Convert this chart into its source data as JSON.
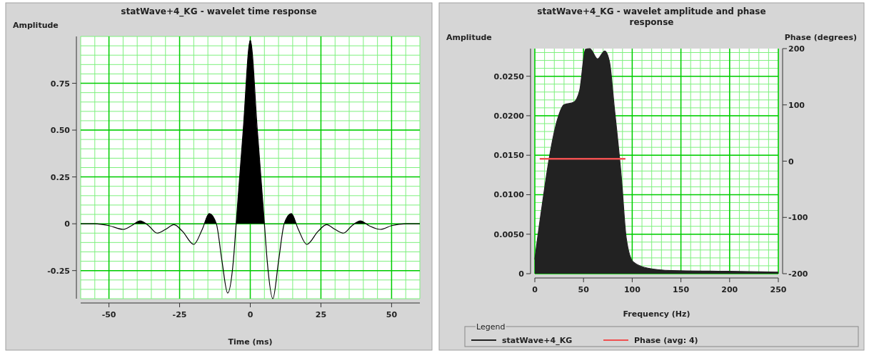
{
  "chart_data": [
    {
      "type": "area",
      "title": "statWave+4_KG - wavelet time response",
      "xlabel": "Time (ms)",
      "ylabel": "Amplitude",
      "x": [
        -60,
        -55,
        -50,
        -45,
        -42,
        -39,
        -36,
        -33,
        -30,
        -27,
        -24,
        -20,
        -17,
        -14.5,
        -12,
        -10,
        -8,
        -6,
        -5,
        -2.5,
        0,
        2.5,
        5,
        6,
        8,
        10,
        12,
        14.5,
        17,
        20,
        24,
        27,
        30,
        33,
        36,
        39,
        42,
        46,
        50,
        55,
        60
      ],
      "series": [
        {
          "color": "#000000",
          "values": [
            0,
            0,
            -0.01,
            -0.03,
            -0.01,
            0.015,
            -0.01,
            -0.05,
            -0.03,
            -0.005,
            -0.04,
            -0.11,
            -0.03,
            0.055,
            0,
            -0.2,
            -0.37,
            -0.2,
            0,
            0.5,
            0.98,
            0.5,
            0,
            -0.2,
            -0.4,
            -0.2,
            0,
            0.055,
            -0.03,
            -0.11,
            -0.04,
            -0.005,
            -0.03,
            -0.05,
            -0.01,
            0.015,
            -0.01,
            -0.03,
            -0.01,
            0,
            0
          ]
        }
      ],
      "xlim": [
        -60,
        60
      ],
      "xticks": [
        -50,
        -25,
        0,
        25,
        50
      ],
      "ylim": [
        -0.4,
        1.0
      ],
      "yticks": [
        -0.25,
        0,
        0.25,
        {
          "value": 0.5,
          "label": "0.50"
        },
        0.75
      ],
      "grid": true
    },
    {
      "type": "area",
      "title": "statWave+4_KG - wavelet amplitude and phase response",
      "xlabel": "Frequency (Hz)",
      "ylabel": "Amplitude",
      "y2label": "Phase (degrees)",
      "legend_title": "Legend",
      "legend": "bottom",
      "series": [
        {
          "name": "statWave+4_KG",
          "color": "#222222",
          "x": [
            0,
            0.6,
            7.9,
            15.3,
            22.7,
            30,
            39.8,
            46,
            52,
            56.5,
            64.4,
            71.8,
            76.7,
            81.6,
            89,
            93.9,
            101,
            116,
            140.5,
            200,
            250
          ],
          "values": [
            0.0018,
            0.0024,
            0.009,
            0.015,
            0.0193,
            0.0214,
            0.0217,
            0.0232,
            0.0284,
            0.0285,
            0.0272,
            0.0282,
            0.0268,
            0.0211,
            0.012,
            0.0045,
            0.0015,
            0.0007,
            0.0004,
            0.0003,
            0.0002
          ]
        },
        {
          "name": "Phase (avg: 4)",
          "type": "line",
          "axis": "y2",
          "color": "#f05050",
          "x": [
            5,
            93
          ],
          "values": [
            4,
            4
          ]
        }
      ],
      "xlim": [
        0,
        250
      ],
      "xticks": [
        0,
        50,
        100,
        150,
        200,
        250
      ],
      "ylim": [
        0,
        0.0285
      ],
      "yticks": [
        0,
        {
          "value": 0.005,
          "label": "0.0050"
        },
        {
          "value": 0.01,
          "label": "0.0100"
        },
        {
          "value": 0.015,
          "label": "0.0150"
        },
        {
          "value": 0.02,
          "label": "0.0200"
        },
        {
          "value": 0.025,
          "label": "0.0250"
        }
      ],
      "y2lim": [
        -200,
        200
      ],
      "y2ticks": [
        -200,
        -100,
        0,
        100,
        200
      ],
      "grid": true
    }
  ]
}
